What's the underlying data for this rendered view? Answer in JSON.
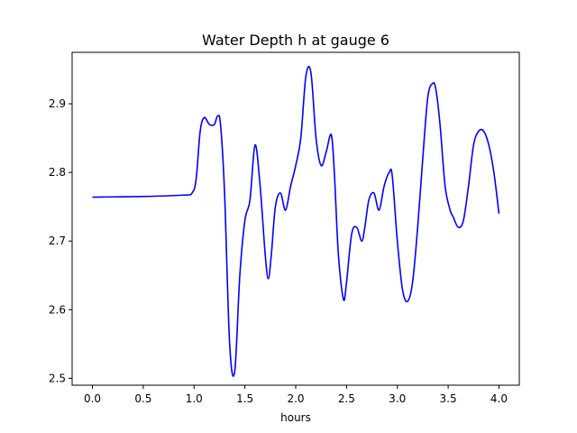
{
  "chart_data": {
    "type": "line",
    "title": "Water Depth h at gauge 6",
    "xlabel": "hours",
    "ylabel": "",
    "xlim": [
      -0.2,
      4.2
    ],
    "ylim": [
      2.49,
      2.975
    ],
    "xticks": [
      0.0,
      0.5,
      1.0,
      1.5,
      2.0,
      2.5,
      3.0,
      3.5,
      4.0
    ],
    "xtick_labels": [
      "0.0",
      "0.5",
      "1.0",
      "1.5",
      "2.0",
      "2.5",
      "3.0",
      "3.5",
      "4.0"
    ],
    "yticks": [
      2.5,
      2.6,
      2.7,
      2.8,
      2.9
    ],
    "ytick_labels": [
      "2.5",
      "2.6",
      "2.7",
      "2.8",
      "2.9"
    ],
    "grid": false,
    "series": [
      {
        "color": "#0000ff",
        "x": [
          0.0,
          0.5,
          0.9,
          0.98,
          1.02,
          1.06,
          1.1,
          1.15,
          1.2,
          1.23,
          1.26,
          1.3,
          1.35,
          1.4,
          1.45,
          1.5,
          1.55,
          1.6,
          1.65,
          1.7,
          1.73,
          1.76,
          1.8,
          1.85,
          1.9,
          1.95,
          2.0,
          2.05,
          2.1,
          2.15,
          2.2,
          2.25,
          2.3,
          2.35,
          2.38,
          2.42,
          2.47,
          2.5,
          2.55,
          2.6,
          2.65,
          2.68,
          2.72,
          2.77,
          2.82,
          2.87,
          2.92,
          2.95,
          3.0,
          3.05,
          3.1,
          3.15,
          3.2,
          3.25,
          3.3,
          3.35,
          3.38,
          3.42,
          3.47,
          3.52,
          3.55,
          3.6,
          3.65,
          3.7,
          3.75,
          3.8,
          3.85,
          3.9,
          3.95,
          4.0
        ],
        "y": [
          2.764,
          2.765,
          2.767,
          2.77,
          2.79,
          2.86,
          2.88,
          2.87,
          2.87,
          2.882,
          2.87,
          2.77,
          2.55,
          2.51,
          2.65,
          2.73,
          2.76,
          2.84,
          2.78,
          2.68,
          2.645,
          2.68,
          2.75,
          2.77,
          2.745,
          2.78,
          2.81,
          2.85,
          2.94,
          2.945,
          2.85,
          2.81,
          2.83,
          2.855,
          2.8,
          2.68,
          2.615,
          2.64,
          2.71,
          2.72,
          2.7,
          2.72,
          2.76,
          2.77,
          2.745,
          2.78,
          2.8,
          2.795,
          2.7,
          2.63,
          2.612,
          2.64,
          2.72,
          2.82,
          2.91,
          2.93,
          2.92,
          2.87,
          2.78,
          2.745,
          2.735,
          2.72,
          2.73,
          2.78,
          2.84,
          2.86,
          2.86,
          2.84,
          2.8,
          2.74
        ]
      }
    ]
  }
}
